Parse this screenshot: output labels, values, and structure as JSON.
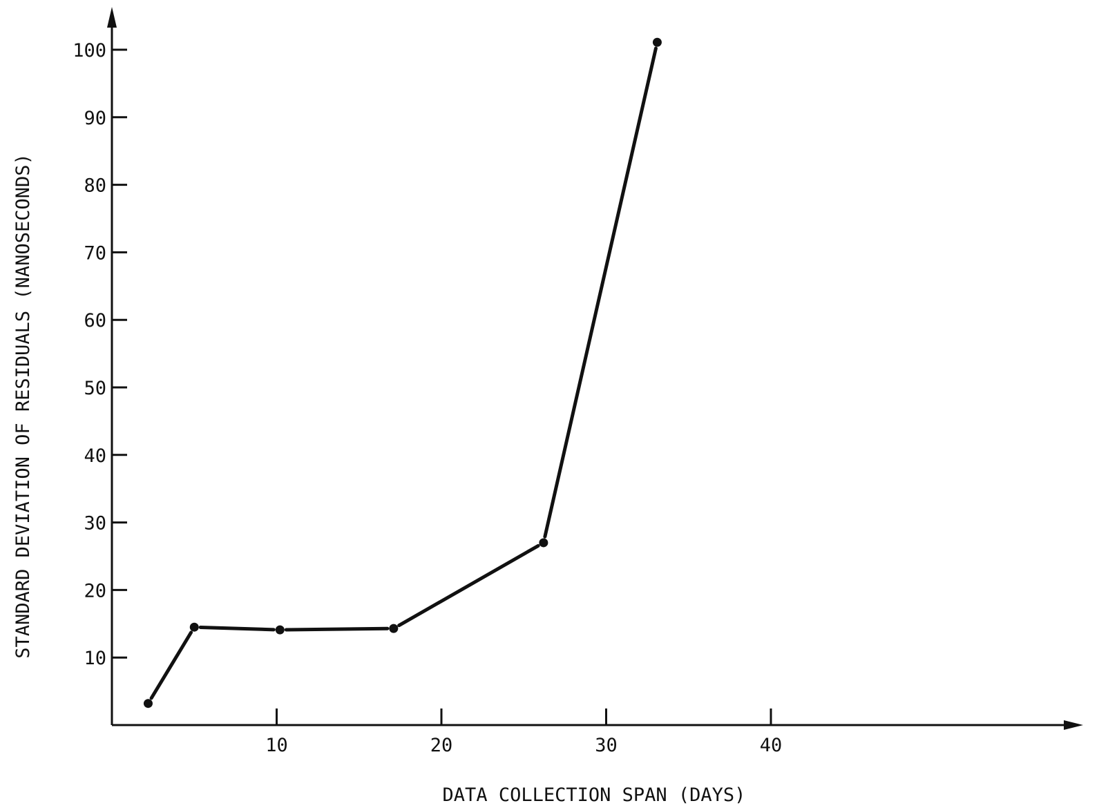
{
  "chart_data": {
    "type": "line",
    "title": "",
    "xlabel": "DATA COLLECTION SPAN (DAYS)",
    "ylabel": "STANDARD DEVIATION OF RESIDUALS (NANOSECONDS)",
    "xlim": [
      0,
      58
    ],
    "ylim": [
      0,
      107
    ],
    "xticks": [
      10,
      20,
      30,
      40
    ],
    "xtick_labels": [
      "10",
      "20",
      "30",
      "40"
    ],
    "yticks": [
      10,
      20,
      30,
      40,
      50,
      60,
      70,
      80,
      90,
      100
    ],
    "ytick_labels": [
      "10",
      "20",
      "30",
      "40",
      "50",
      "60",
      "70",
      "80",
      "90",
      "100"
    ],
    "grid": false,
    "legend": "none",
    "series": [
      {
        "x": [
          2.2,
          5.0,
          10.2,
          17.1,
          26.2,
          33.1
        ],
        "y": [
          3.2,
          14.5,
          14.1,
          14.3,
          27.0,
          101.1
        ]
      }
    ],
    "colors": {
      "line": "#111111",
      "axis": "#111111",
      "background": "#ffffff"
    }
  }
}
